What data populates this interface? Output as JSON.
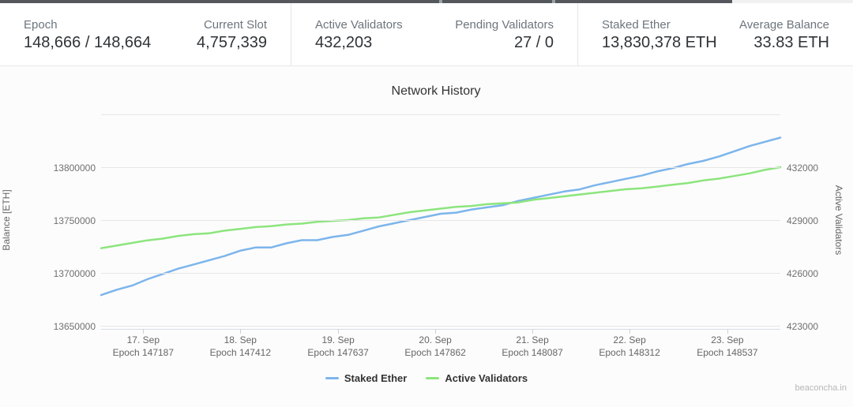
{
  "stats": [
    {
      "label": "Epoch",
      "value": "148,666 / 148,664"
    },
    {
      "label": "Current Slot",
      "value": "4,757,339"
    },
    {
      "label": "Active Validators",
      "value": "432,203"
    },
    {
      "label": "Pending Validators",
      "value": "27 / 0"
    },
    {
      "label": "Staked Ether",
      "value": "13,830,378 ETH"
    },
    {
      "label": "Average Balance",
      "value": "33.83 ETH"
    }
  ],
  "watermark": "beaconcha.in",
  "colors": {
    "staked_ether_line": "#7cb5ec",
    "active_validators_line": "#8ce57d",
    "gridline": "#e6e6e6",
    "axis_text": "#666666"
  },
  "chart_data": {
    "type": "line",
    "title": "Network History",
    "legend_position": "bottom-center",
    "grid": "horizontal-only",
    "y_left": {
      "title": "Balance [ETH]",
      "min": 13650000,
      "max": 13850000,
      "ticks": [
        13800000,
        13750000,
        13700000,
        13650000
      ]
    },
    "y_right": {
      "title": "Active Validators",
      "min": 423000,
      "max": 435000,
      "ticks": [
        432000,
        429000,
        426000,
        423000
      ]
    },
    "x_ticks": [
      {
        "pos": 0.062,
        "date": "17. Sep",
        "epoch": "Epoch 147187"
      },
      {
        "pos": 0.205,
        "date": "18. Sep",
        "epoch": "Epoch 147412"
      },
      {
        "pos": 0.349,
        "date": "19. Sep",
        "epoch": "Epoch 147637"
      },
      {
        "pos": 0.492,
        "date": "20. Sep",
        "epoch": "Epoch 147862"
      },
      {
        "pos": 0.635,
        "date": "21. Sep",
        "epoch": "Epoch 148087"
      },
      {
        "pos": 0.778,
        "date": "22. Sep",
        "epoch": "Epoch 148312"
      },
      {
        "pos": 0.922,
        "date": "23. Sep",
        "epoch": "Epoch 148537"
      }
    ],
    "series": [
      {
        "name": "Staked Ether",
        "axis": "left",
        "color": "#7cb5ec",
        "values": [
          13679000,
          13684000,
          13688000,
          13694000,
          13699000,
          13704000,
          13708000,
          13712000,
          13716000,
          13721000,
          13724000,
          13724000,
          13728000,
          13731000,
          13731000,
          13734000,
          13736000,
          13740000,
          13744000,
          13747000,
          13750000,
          13753000,
          13756000,
          13757000,
          13760000,
          13762000,
          13764000,
          13768000,
          13771000,
          13774000,
          13777000,
          13779000,
          13783000,
          13786000,
          13789000,
          13792000,
          13796000,
          13799000,
          13803000,
          13806000,
          13810000,
          13815000,
          13820000,
          13824000,
          13828000
        ]
      },
      {
        "name": "Active Validators",
        "axis": "right",
        "color": "#8ce57d",
        "values": [
          427400,
          427550,
          427700,
          427850,
          427950,
          428100,
          428200,
          428250,
          428400,
          428500,
          428600,
          428650,
          428750,
          428800,
          428900,
          428950,
          429000,
          429100,
          429150,
          429300,
          429450,
          429550,
          429650,
          429750,
          429800,
          429900,
          429950,
          430000,
          430150,
          430250,
          430350,
          430450,
          430550,
          430650,
          430750,
          430800,
          430900,
          431000,
          431100,
          431250,
          431350,
          431500,
          431650,
          431850,
          432000
        ]
      }
    ]
  }
}
